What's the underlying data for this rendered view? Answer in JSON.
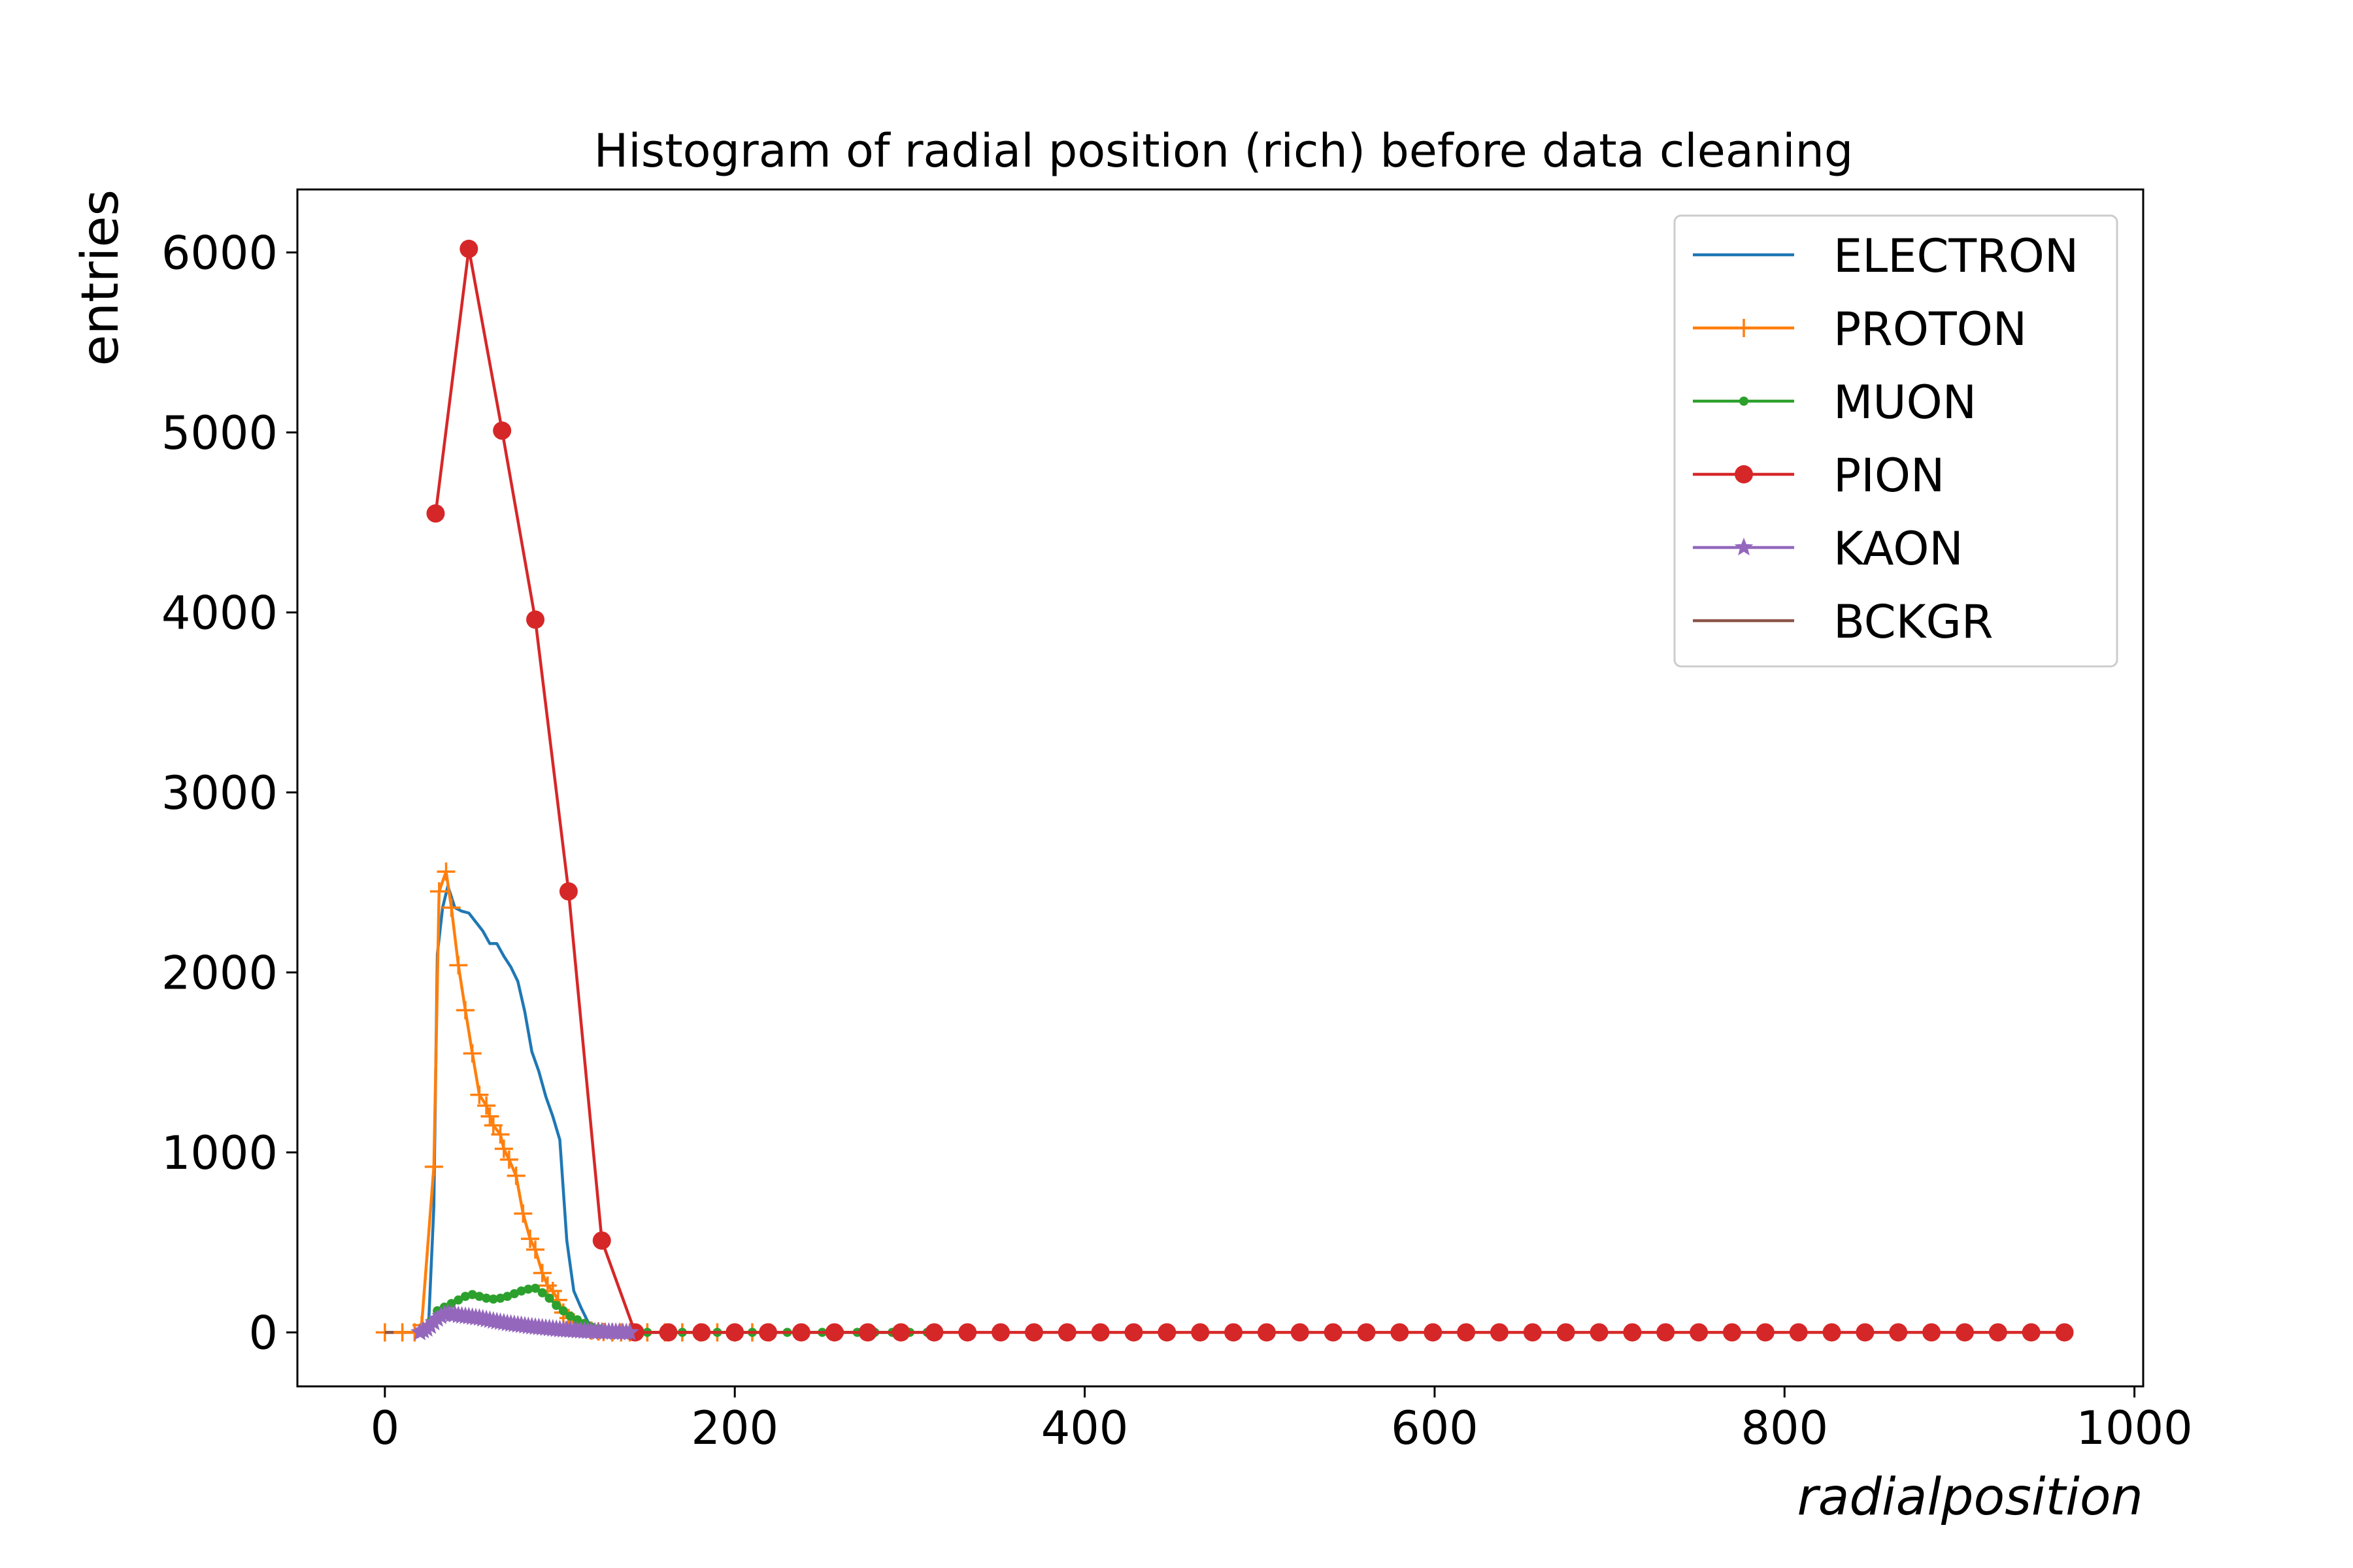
{
  "chart_data": {
    "type": "line",
    "title": "Histogram of radial position (rich) before data cleaning",
    "xlabel": "radialposition",
    "ylabel": "entries",
    "xlim": [
      -50,
      1005
    ],
    "ylim": [
      -300,
      6350
    ],
    "xticks": [
      0,
      200,
      400,
      600,
      800,
      1000
    ],
    "yticks": [
      0,
      1000,
      2000,
      3000,
      4000,
      5000,
      6000
    ],
    "grid": false,
    "legend_position": "upper right",
    "series": [
      {
        "name": "ELECTRON",
        "color": "#1f77b4",
        "marker": "none",
        "x": [
          0,
          10,
          15,
          20,
          25,
          28,
          30,
          33,
          36,
          40,
          44,
          48,
          52,
          56,
          60,
          64,
          68,
          72,
          76,
          80,
          84,
          88,
          92,
          96,
          100,
          104,
          108,
          112,
          116,
          120,
          124,
          128,
          132,
          140,
          160,
          200,
          300
        ],
        "y": [
          0,
          0,
          0,
          5,
          50,
          700,
          2100,
          2360,
          2480,
          2360,
          2340,
          2330,
          2280,
          2230,
          2160,
          2160,
          2090,
          2030,
          1950,
          1780,
          1560,
          1450,
          1310,
          1200,
          1070,
          510,
          230,
          140,
          60,
          20,
          5,
          0,
          0,
          0,
          0,
          0,
          0
        ]
      },
      {
        "name": "PROTON",
        "color": "#ff7f0e",
        "marker": "plus",
        "x": [
          0,
          10,
          17,
          21,
          28,
          31,
          35,
          38,
          42,
          46,
          50,
          54,
          58,
          60,
          62,
          66,
          68,
          71,
          75,
          79,
          83,
          86,
          90,
          93,
          96,
          99,
          102,
          105,
          108,
          111,
          115,
          118,
          122,
          125,
          130,
          135,
          140,
          150,
          160,
          170,
          180,
          190,
          200,
          210,
          220
        ],
        "y": [
          0,
          0,
          0,
          40,
          920,
          2450,
          2560,
          2360,
          2040,
          1790,
          1550,
          1320,
          1260,
          1200,
          1150,
          1100,
          1020,
          960,
          870,
          660,
          520,
          460,
          330,
          260,
          230,
          180,
          110,
          80,
          55,
          30,
          20,
          10,
          5,
          2,
          0,
          0,
          0,
          0,
          0,
          0,
          0,
          0,
          0,
          0,
          0
        ]
      },
      {
        "name": "MUON",
        "color": "#2ca02c",
        "marker": "dot",
        "x": [
          22,
          26,
          30,
          34,
          38,
          42,
          46,
          50,
          54,
          58,
          62,
          66,
          70,
          74,
          78,
          82,
          86,
          90,
          94,
          98,
          102,
          106,
          110,
          114,
          118,
          122,
          126,
          130,
          140,
          150,
          160,
          170,
          180,
          190,
          200,
          210,
          220,
          230,
          240,
          250,
          260,
          270,
          280,
          290,
          300,
          310
        ],
        "y": [
          0,
          60,
          120,
          140,
          160,
          180,
          200,
          210,
          200,
          190,
          185,
          190,
          200,
          215,
          230,
          240,
          245,
          220,
          190,
          150,
          120,
          90,
          70,
          50,
          30,
          20,
          10,
          5,
          0,
          0,
          0,
          0,
          0,
          0,
          0,
          0,
          0,
          0,
          0,
          0,
          0,
          0,
          0,
          0,
          0,
          0
        ]
      },
      {
        "name": "PION",
        "color": "#d62728",
        "marker": "circle",
        "x": [
          29,
          48,
          67,
          86,
          105,
          124,
          143,
          162,
          181,
          200,
          219,
          238,
          257,
          276,
          295,
          314,
          333,
          352,
          371,
          390,
          409,
          428,
          447,
          466,
          485,
          504,
          523,
          542,
          561,
          580,
          599,
          618,
          637,
          656,
          675,
          694,
          713,
          732,
          751,
          770,
          789,
          808,
          827,
          846,
          865,
          884,
          903,
          922,
          941,
          960
        ],
        "y": [
          4550,
          6020,
          5010,
          3960,
          2450,
          510,
          0,
          0,
          0,
          0,
          0,
          0,
          0,
          0,
          0,
          0,
          0,
          0,
          0,
          0,
          0,
          0,
          0,
          0,
          0,
          0,
          0,
          0,
          0,
          0,
          0,
          0,
          0,
          0,
          0,
          0,
          0,
          0,
          0,
          0,
          0,
          0,
          0,
          0,
          0,
          0,
          0,
          0,
          0,
          0
        ]
      },
      {
        "name": "KAON",
        "color": "#9467bd",
        "marker": "star",
        "x": [
          20,
          22,
          24,
          26,
          28,
          30,
          32,
          34,
          36,
          38,
          40,
          42,
          44,
          46,
          48,
          50,
          52,
          54,
          56,
          58,
          60,
          62,
          64,
          66,
          68,
          70,
          72,
          74,
          76,
          78,
          80,
          82,
          84,
          86,
          88,
          90,
          92,
          94,
          96,
          98,
          100,
          102,
          104,
          106,
          108,
          110,
          112,
          114,
          116,
          118,
          120,
          122,
          124,
          126,
          128,
          130,
          132,
          134,
          136,
          138,
          140
        ],
        "y": [
          0,
          10,
          20,
          35,
          55,
          75,
          90,
          100,
          105,
          100,
          100,
          95,
          92,
          90,
          88,
          85,
          82,
          80,
          76,
          72,
          68,
          64,
          60,
          57,
          54,
          50,
          47,
          45,
          42,
          40,
          37,
          34,
          32,
          30,
          28,
          26,
          24,
          22,
          20,
          18,
          16,
          15,
          14,
          13,
          12,
          10,
          9,
          8,
          7,
          6,
          5,
          4,
          4,
          3,
          3,
          2,
          2,
          1,
          1,
          0,
          0
        ]
      },
      {
        "name": "BCKGR",
        "color": "#8c564b",
        "marker": "none",
        "x": [
          0,
          5
        ],
        "y": [
          0,
          0
        ]
      }
    ]
  }
}
